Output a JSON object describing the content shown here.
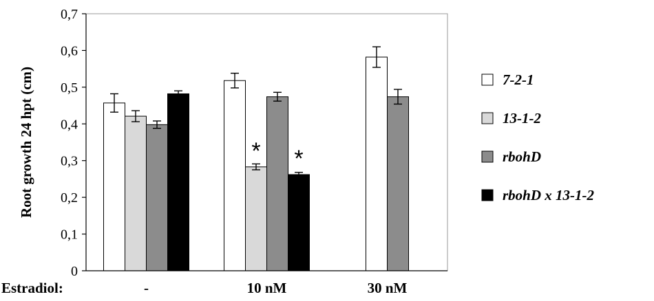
{
  "chart_data": {
    "type": "bar",
    "title": "",
    "xlabel": "",
    "x_prefix_label": "Estradiol:",
    "ylabel": "Root growth 24 hpt (cm)",
    "ylim": [
      0,
      0.7
    ],
    "yticks": [
      "0",
      "0,1",
      "0,2",
      "0,3",
      "0,4",
      "0,5",
      "0,6",
      "0,7"
    ],
    "categories": [
      "-",
      "10 nM",
      "30 nM"
    ],
    "grid": false,
    "legend_position": "right",
    "series": [
      {
        "name": "7-2-1",
        "color": "#ffffff",
        "values": [
          0.457,
          0.518,
          0.582
        ],
        "errors": [
          0.025,
          0.02,
          0.028
        ]
      },
      {
        "name": "13-1-2",
        "color": "#d9d9d9",
        "values": [
          0.421,
          0.283,
          null
        ],
        "errors": [
          0.015,
          0.008,
          null
        ]
      },
      {
        "name": "rbohD",
        "color": "#8c8c8c",
        "values": [
          0.398,
          0.474,
          0.474
        ],
        "errors": [
          0.01,
          0.012,
          0.02
        ]
      },
      {
        "name": "rbohD x 13-1-2",
        "color": "#000000",
        "values": [
          0.482,
          0.262,
          null
        ],
        "errors": [
          0.008,
          0.006,
          null
        ]
      }
    ],
    "annotations": [
      {
        "text": "*",
        "category": "10 nM",
        "series": "13-1-2"
      },
      {
        "text": "*",
        "category": "10 nM",
        "series": "rbohD x 13-1-2"
      }
    ]
  }
}
